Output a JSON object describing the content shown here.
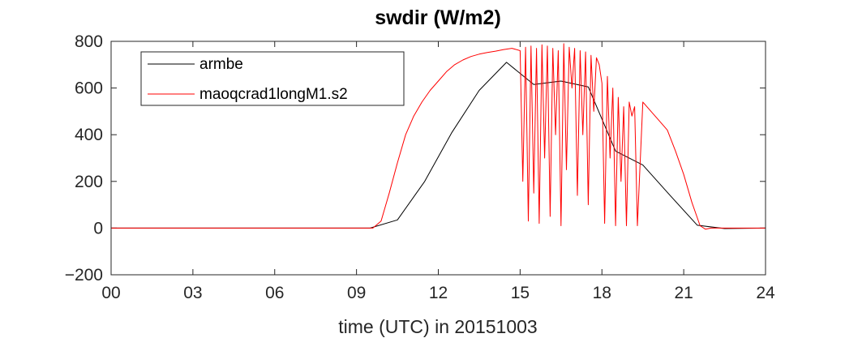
{
  "chart_data": {
    "type": "line",
    "title": "swdir  (W/m2)",
    "xlabel": "time (UTC) in 20151003",
    "ylabel": "",
    "xlim": [
      0,
      24
    ],
    "ylim": [
      -200,
      800
    ],
    "x_ticks": [
      0,
      3,
      6,
      9,
      12,
      15,
      18,
      21,
      24
    ],
    "x_tick_labels": [
      "00",
      "03",
      "06",
      "09",
      "12",
      "15",
      "18",
      "21",
      "24"
    ],
    "y_ticks": [
      -200,
      0,
      200,
      400,
      600,
      800
    ],
    "y_tick_labels": [
      "−200",
      "0",
      "200",
      "400",
      "600",
      "800"
    ],
    "grid": false,
    "legend_position": "top-left",
    "series": [
      {
        "name": "armbe",
        "color": "#000000",
        "x": [
          0,
          9.5,
          10.5,
          11.5,
          12.5,
          13.5,
          14.5,
          15.5,
          16.5,
          17.5,
          18.5,
          19.5,
          20.5,
          21.5,
          22.5,
          24
        ],
        "y": [
          0,
          0,
          35,
          200,
          410,
          590,
          710,
          615,
          630,
          605,
          330,
          270,
          140,
          12,
          -2,
          0
        ]
      },
      {
        "name": "maoqcrad1longM1.s2",
        "color": "#ff0000",
        "x": [
          0,
          9.6,
          9.9,
          10.2,
          10.5,
          10.8,
          11.1,
          11.4,
          11.7,
          12.0,
          12.3,
          12.6,
          12.9,
          13.2,
          13.5,
          13.8,
          14.1,
          14.4,
          14.7,
          15.0,
          15.1,
          15.2,
          15.3,
          15.4,
          15.5,
          15.6,
          15.7,
          15.8,
          15.9,
          16.0,
          16.1,
          16.2,
          16.3,
          16.4,
          16.5,
          16.6,
          16.7,
          16.8,
          16.9,
          17.0,
          17.1,
          17.2,
          17.3,
          17.4,
          17.5,
          17.6,
          17.7,
          17.8,
          17.9,
          18.0,
          18.1,
          18.2,
          18.3,
          18.4,
          18.5,
          18.6,
          18.7,
          18.8,
          18.9,
          19.0,
          19.1,
          19.2,
          19.3,
          19.5,
          19.8,
          20.1,
          20.4,
          20.7,
          21.0,
          21.3,
          21.6,
          21.8,
          22.0,
          24
        ],
        "y": [
          0,
          0,
          30,
          150,
          280,
          400,
          480,
          540,
          590,
          630,
          670,
          700,
          720,
          735,
          745,
          752,
          758,
          765,
          770,
          760,
          200,
          775,
          30,
          780,
          150,
          770,
          20,
          785,
          300,
          780,
          50,
          770,
          400,
          760,
          10,
          790,
          250,
          775,
          600,
          770,
          140,
          760,
          400,
          755,
          100,
          740,
          500,
          730,
          700,
          620,
          20,
          650,
          300,
          600,
          10,
          560,
          200,
          520,
          10,
          540,
          480,
          520,
          10,
          540,
          500,
          460,
          420,
          330,
          230,
          110,
          10,
          -5,
          0,
          0
        ]
      }
    ]
  }
}
